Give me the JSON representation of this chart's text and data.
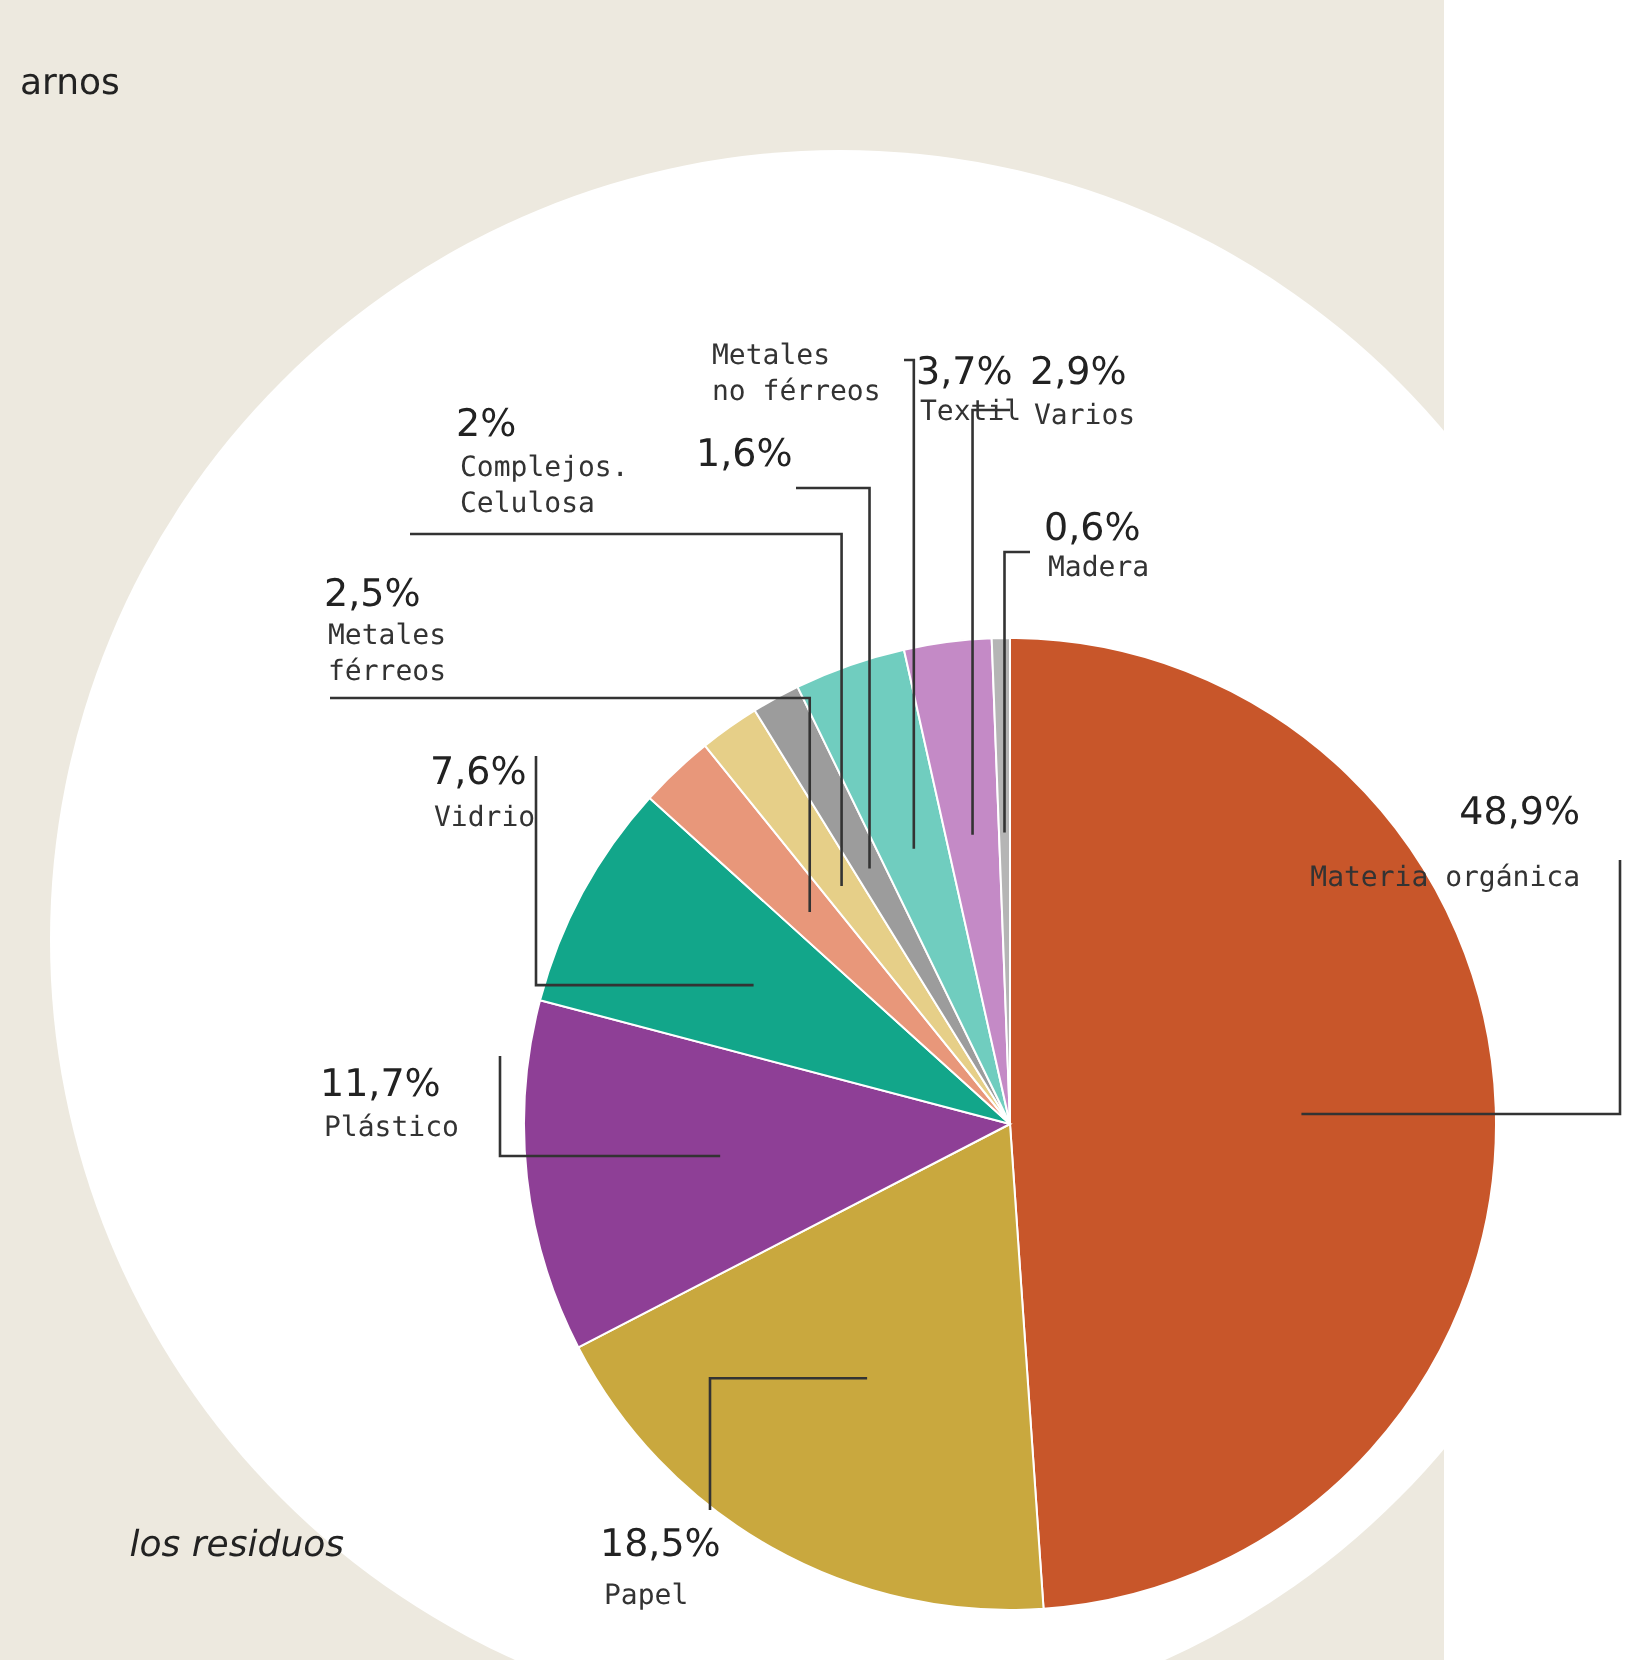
{
  "chart_data": {
    "type": "pie",
    "categories": [
      "Materia orgánica",
      "Papel",
      "Plástico",
      "Vidrio",
      "Metales férreos",
      "Complejos. Celulosa",
      "Metales no férreos",
      "Textil",
      "Varios",
      "Madera"
    ],
    "values": [
      48.9,
      18.5,
      11.7,
      7.6,
      2.5,
      2,
      1.6,
      3.7,
      2.9,
      0.6
    ],
    "value_labels": [
      "48,9%",
      "18,5%",
      "11,7%",
      "7,6%",
      "2,5%",
      "2%",
      "1,6%",
      "3,7%",
      "2,9%",
      "0,6%"
    ],
    "colors": [
      "#c8562a",
      "#c9a83e",
      "#8e3f96",
      "#12a68a",
      "#e8977a",
      "#e6cf88",
      "#9c9c9c",
      "#70cdbf",
      "#c48ac6",
      "#b5b5b5"
    ],
    "annotations": [
      "arnos",
      "los residuos"
    ]
  }
}
